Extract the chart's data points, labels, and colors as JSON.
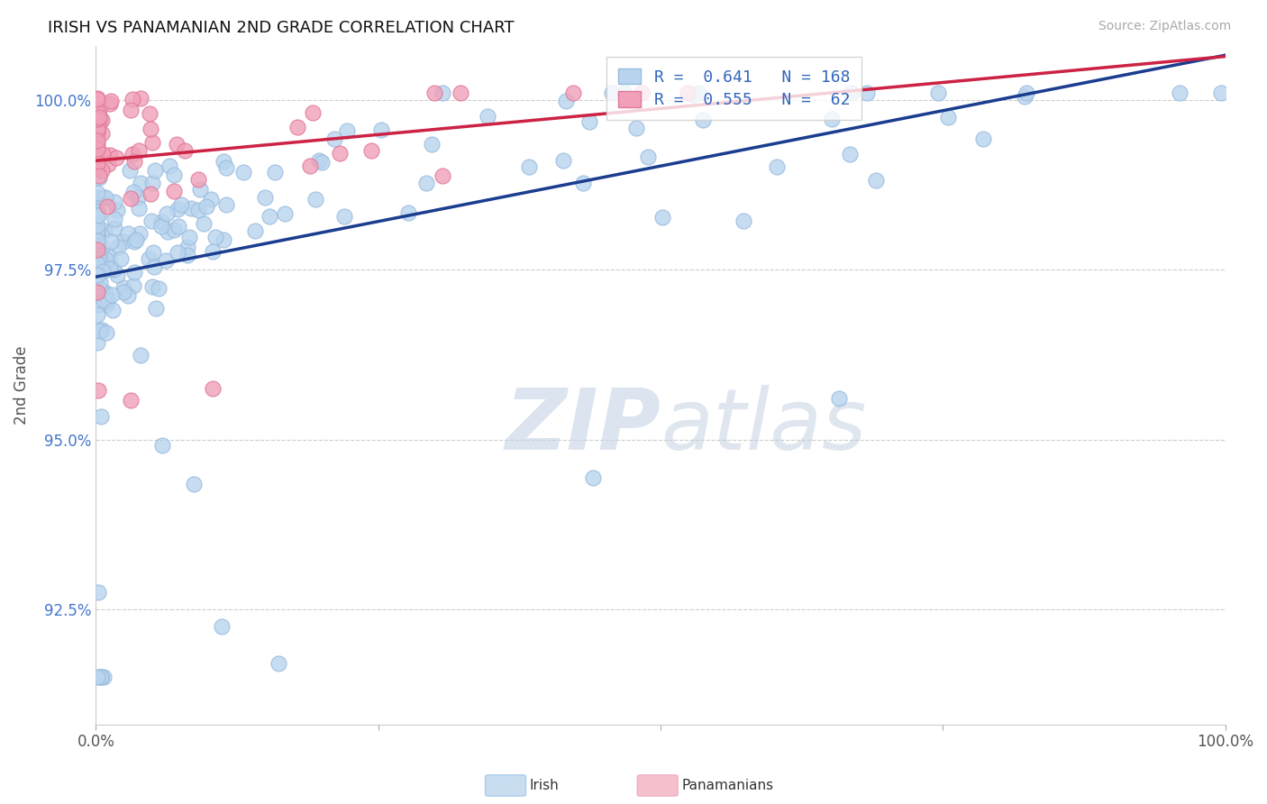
{
  "title": "IRISH VS PANAMANIAN 2ND GRADE CORRELATION CHART",
  "source": "Source: ZipAtlas.com",
  "ylabel": "2nd Grade",
  "ytick_labels": [
    "92.5%",
    "95.0%",
    "97.5%",
    "100.0%"
  ],
  "ytick_values": [
    0.925,
    0.95,
    0.975,
    1.0
  ],
  "xlim": [
    0.0,
    1.0
  ],
  "ylim": [
    0.908,
    1.008
  ],
  "irish_R": "0.641",
  "irish_N": "168",
  "panamanian_R": "0.555",
  "panamanian_N": "62",
  "blue_marker_color": "#b8d4ee",
  "blue_edge_color": "#99bbdd",
  "blue_line_color": "#1a3d8f",
  "pink_marker_color": "#f0a0b8",
  "pink_edge_color": "#e07898",
  "pink_line_color": "#cc2244",
  "legend_label_irish": "Irish",
  "legend_label_panamanian": "Panamanians",
  "watermark_zip": "ZIP",
  "watermark_atlas": "atlas",
  "watermark_color_zip": "#c5d5e5",
  "watermark_color_atlas": "#c0cfe0",
  "title_fontsize": 13,
  "source_fontsize": 10,
  "ytick_color": "#4477cc",
  "xtick_color": "#555555",
  "ylabel_color": "#555555",
  "grid_color": "#cccccc",
  "legend_text_color": "#3366bb",
  "bottom_legend_box_color_irish": "#c8ddf0",
  "bottom_legend_box_color_pana": "#f5c0cc"
}
